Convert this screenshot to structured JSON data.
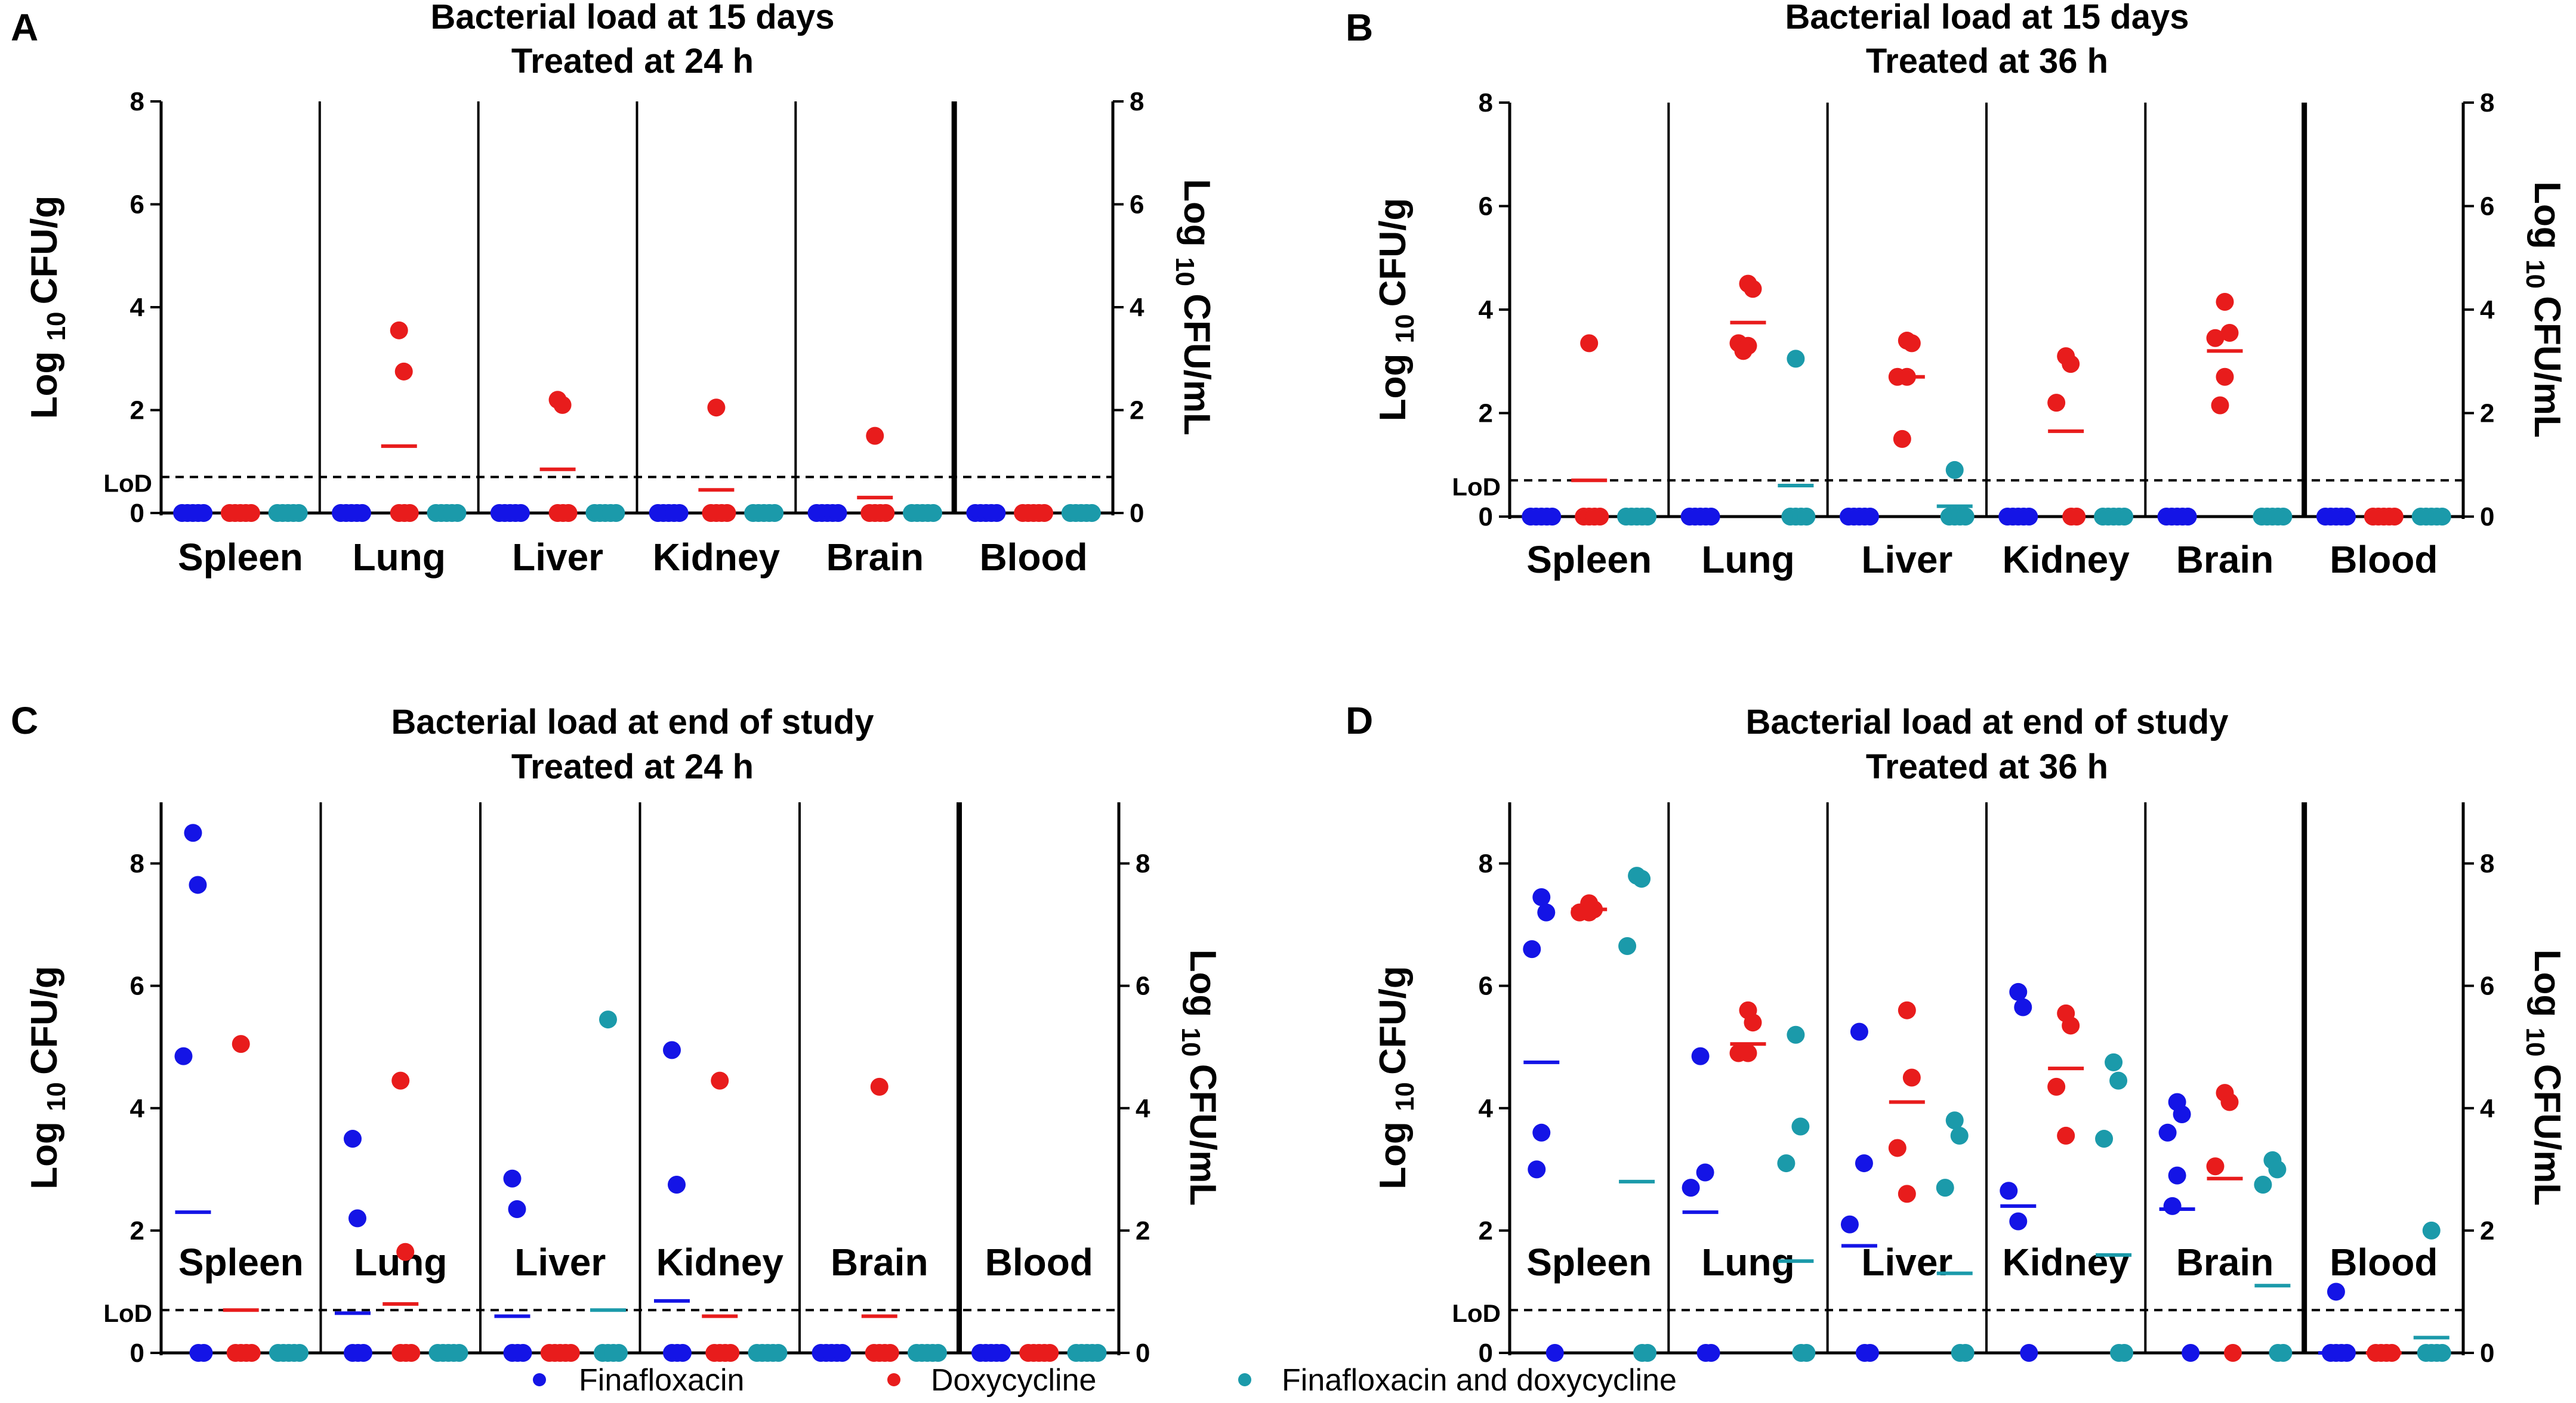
{
  "legend": {
    "items": [
      {
        "label": "Finafloxacin",
        "color": "#1414e6"
      },
      {
        "label": "Doxycycline",
        "color": "#e81c1c"
      },
      {
        "label": "Finafloxacin and doxycycline",
        "color": "#1b9aaa"
      }
    ]
  },
  "chart_data": [
    {
      "type": "scatter",
      "panel": "A",
      "title": "Bacterial load at 15 days",
      "subtitle": "Treated at 24 h",
      "ylabel_left": {
        "main": "CFU/g",
        "prefix": "Log",
        "sub": "10"
      },
      "ylabel_right": {
        "main": "CFU/mL",
        "prefix": "Log",
        "sub": "10"
      },
      "lod_label": "LoD",
      "lod_value": 0.7,
      "ylim": [
        0,
        8
      ],
      "yticks": [
        "0",
        "2",
        "4",
        "6",
        "8"
      ],
      "ytick_values": [
        0,
        2,
        4,
        6,
        8
      ],
      "categories": [
        "Spleen",
        "Lung",
        "Liver",
        "Kidney",
        "Brain",
        "Blood"
      ],
      "series": [
        {
          "name": "Finafloxacin",
          "points": [
            [
              0,
              0,
              0,
              0,
              0
            ],
            [
              0,
              0,
              0,
              0,
              0
            ],
            [
              0,
              0,
              0,
              0,
              0
            ],
            [
              0,
              0,
              0,
              0,
              0
            ],
            [
              0,
              0,
              0,
              0,
              0
            ],
            [
              0,
              0,
              0,
              0,
              0
            ]
          ],
          "means": [
            0,
            0,
            0,
            0,
            0,
            0
          ]
        },
        {
          "name": "Doxycycline",
          "points": [
            [
              0,
              0,
              0,
              0,
              0
            ],
            [
              3.55,
              2.75,
              0,
              0,
              0
            ],
            [
              2.2,
              2.1,
              0,
              0,
              0
            ],
            [
              2.05,
              0,
              0,
              0,
              0
            ],
            [
              1.5,
              0,
              0,
              0,
              0
            ],
            [
              0,
              0,
              0,
              0,
              0
            ]
          ],
          "means": [
            0,
            1.3,
            0.85,
            0.45,
            0.3,
            0
          ]
        },
        {
          "name": "Finafloxacin and doxycycline",
          "points": [
            [
              0,
              0,
              0,
              0,
              0
            ],
            [
              0,
              0,
              0,
              0,
              0
            ],
            [
              0,
              0,
              0,
              0,
              0
            ],
            [
              0,
              0,
              0,
              0,
              0
            ],
            [
              0,
              0,
              0,
              0,
              0
            ],
            [
              0,
              0,
              0,
              0,
              0
            ]
          ],
          "means": [
            0,
            0,
            0,
            0,
            0,
            0
          ]
        }
      ]
    },
    {
      "type": "scatter",
      "panel": "B",
      "title": "Bacterial load at 15 days",
      "subtitle": "Treated at 36 h",
      "ylabel_left": {
        "main": "CFU/g",
        "prefix": "Log",
        "sub": "10"
      },
      "ylabel_right": {
        "main": "CFU/mL",
        "prefix": "Log",
        "sub": "10"
      },
      "lod_label": "LoD",
      "lod_value": 0.7,
      "ylim": [
        0,
        8
      ],
      "yticks": [
        "0",
        "2",
        "4",
        "6",
        "8"
      ],
      "ytick_values": [
        0,
        2,
        4,
        6,
        8
      ],
      "categories": [
        "Spleen",
        "Lung",
        "Liver",
        "Kidney",
        "Brain",
        "Blood"
      ],
      "series": [
        {
          "name": "Finafloxacin",
          "points": [
            [
              0,
              0,
              0,
              0,
              0
            ],
            [
              0,
              0,
              0,
              0,
              0
            ],
            [
              0,
              0,
              0,
              0,
              0
            ],
            [
              0,
              0,
              0,
              0,
              0
            ],
            [
              0,
              0,
              0,
              0,
              0
            ],
            [
              0,
              0,
              0,
              0,
              0
            ]
          ],
          "means": [
            0,
            0,
            0,
            0,
            0,
            0
          ]
        },
        {
          "name": "Doxycycline",
          "points": [
            [
              3.35,
              0,
              0,
              0,
              0
            ],
            [
              4.5,
              4.4,
              3.35,
              3.3,
              3.2
            ],
            [
              3.4,
              3.35,
              2.7,
              2.7,
              1.5
            ],
            [
              3.1,
              2.95,
              2.2,
              0,
              0
            ],
            [
              4.15,
              3.55,
              3.45,
              2.7,
              2.15
            ],
            [
              0,
              0,
              0,
              0,
              0
            ]
          ],
          "means": [
            0.7,
            3.75,
            2.7,
            1.65,
            3.2,
            0
          ]
        },
        {
          "name": "Finafloxacin and doxycycline",
          "points": [
            [
              0,
              0,
              0,
              0,
              0
            ],
            [
              3.05,
              0,
              0,
              0,
              0
            ],
            [
              0.9,
              0,
              0,
              0,
              0
            ],
            [
              0,
              0,
              0,
              0,
              0
            ],
            [
              0,
              0,
              0,
              0,
              0
            ],
            [
              0,
              0,
              0,
              0,
              0
            ]
          ],
          "means": [
            0,
            0.6,
            0.2,
            0,
            0,
            0
          ]
        }
      ]
    },
    {
      "type": "scatter",
      "panel": "C",
      "title": "Bacterial load at end of study",
      "subtitle": "Treated at 24 h",
      "ylabel_left": {
        "main": "CFU/g",
        "prefix": "Log",
        "sub": "10"
      },
      "ylabel_right": {
        "main": "CFU/mL",
        "prefix": "Log",
        "sub": "10"
      },
      "lod_label": "LoD",
      "lod_value": 0.7,
      "ylim": [
        0,
        9
      ],
      "yticks": [
        "0",
        "2",
        "4",
        "6",
        "8"
      ],
      "ytick_values": [
        0,
        2,
        4,
        6,
        8
      ],
      "categories": [
        "Spleen",
        "Lung",
        "Liver",
        "Kidney",
        "Brain",
        "Blood"
      ],
      "series": [
        {
          "name": "Finafloxacin",
          "points": [
            [
              8.5,
              7.65,
              4.85,
              0,
              0
            ],
            [
              3.5,
              2.2,
              0,
              0,
              0
            ],
            [
              2.85,
              2.35,
              0,
              0,
              0
            ],
            [
              4.95,
              2.75,
              0,
              0,
              0
            ],
            [
              0,
              0,
              0,
              0,
              0
            ],
            [
              0,
              0,
              0,
              0,
              0
            ]
          ],
          "means": [
            2.3,
            0.65,
            0.6,
            0.85,
            0,
            0
          ]
        },
        {
          "name": "Doxycycline",
          "points": [
            [
              5.05,
              0,
              0,
              0,
              0
            ],
            [
              4.45,
              1.65,
              0,
              0,
              0
            ],
            [
              0,
              0,
              0,
              0,
              0
            ],
            [
              4.45,
              0,
              0,
              0,
              0
            ],
            [
              4.35,
              0,
              0,
              0,
              0
            ],
            [
              0,
              0,
              0,
              0,
              0
            ]
          ],
          "means": [
            0.7,
            0.8,
            0,
            0.6,
            0.6,
            0
          ]
        },
        {
          "name": "Finafloxacin and doxycycline",
          "points": [
            [
              0,
              0,
              0,
              0,
              0
            ],
            [
              0,
              0,
              0,
              0,
              0
            ],
            [
              5.45,
              0,
              0,
              0,
              0
            ],
            [
              0,
              0,
              0,
              0,
              0
            ],
            [
              0,
              0,
              0,
              0,
              0
            ],
            [
              0,
              0,
              0,
              0,
              0
            ]
          ],
          "means": [
            0,
            0,
            0.7,
            0,
            0,
            0
          ]
        }
      ]
    },
    {
      "type": "scatter",
      "panel": "D",
      "title": "Bacterial load at end of study",
      "subtitle": "Treated at 36 h",
      "ylabel_left": {
        "main": "CFU/g",
        "prefix": "Log",
        "sub": "10"
      },
      "ylabel_right": {
        "main": "CFU/mL",
        "prefix": "Log",
        "sub": "10"
      },
      "lod_label": "LoD",
      "lod_value": 0.7,
      "ylim": [
        0,
        9
      ],
      "yticks": [
        "0",
        "2",
        "4",
        "6",
        "8"
      ],
      "ytick_values": [
        0,
        2,
        4,
        6,
        8
      ],
      "categories": [
        "Spleen",
        "Lung",
        "Liver",
        "Kidney",
        "Brain",
        "Blood"
      ],
      "series": [
        {
          "name": "Finafloxacin",
          "points": [
            [
              7.45,
              7.2,
              6.6,
              3.6,
              3.0,
              0
            ],
            [
              4.85,
              2.95,
              2.7,
              0,
              0
            ],
            [
              5.25,
              3.1,
              2.1,
              0,
              0
            ],
            [
              5.9,
              5.65,
              2.65,
              2.15,
              0
            ],
            [
              4.1,
              3.9,
              3.6,
              2.9,
              2.4,
              0
            ],
            [
              1.0,
              0,
              0,
              0,
              0
            ]
          ],
          "means": [
            4.75,
            2.3,
            1.75,
            2.4,
            2.35,
            0
          ]
        },
        {
          "name": "Doxycycline",
          "points": [
            [
              7.35,
              7.25,
              7.2,
              7.2
            ],
            [
              5.6,
              5.4,
              4.9,
              4.9
            ],
            [
              5.6,
              4.5,
              3.35,
              2.6
            ],
            [
              5.55,
              5.35,
              4.35,
              3.55
            ],
            [
              4.25,
              4.1,
              3.05,
              0
            ],
            [
              0,
              0,
              0,
              0
            ]
          ],
          "means": [
            7.25,
            5.05,
            4.1,
            4.65,
            2.85,
            0
          ]
        },
        {
          "name": "Finafloxacin and doxycycline",
          "points": [
            [
              7.8,
              7.75,
              6.65,
              0,
              0
            ],
            [
              5.2,
              3.7,
              3.1,
              0,
              0
            ],
            [
              3.8,
              3.55,
              2.7,
              0,
              0
            ],
            [
              4.75,
              4.45,
              3.5,
              0,
              0
            ],
            [
              3.15,
              3.0,
              2.75,
              0,
              0
            ],
            [
              2.0,
              0,
              0,
              0,
              0
            ]
          ],
          "means": [
            2.8,
            1.5,
            1.3,
            1.6,
            1.1,
            0.25
          ]
        }
      ]
    }
  ]
}
